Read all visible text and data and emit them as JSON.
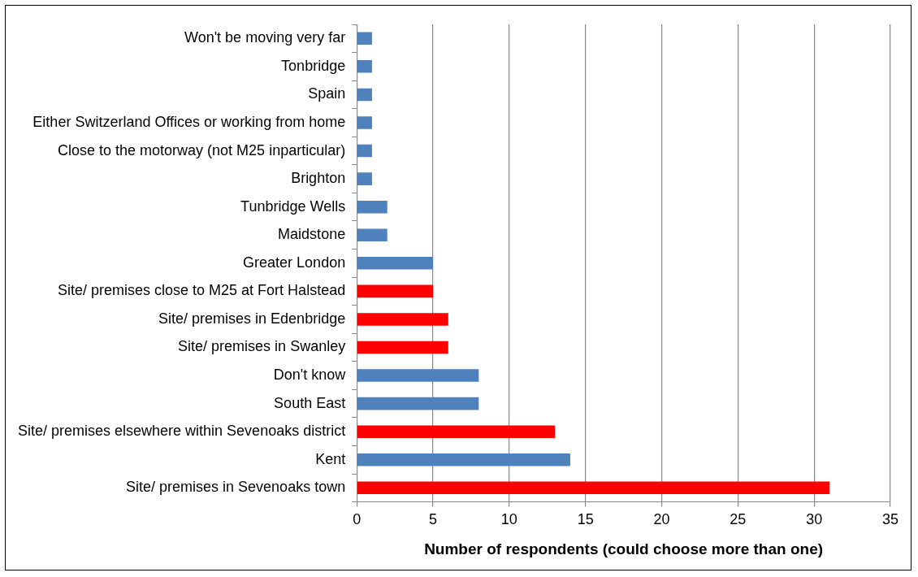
{
  "chart_data": {
    "type": "bar",
    "orientation": "horizontal",
    "xlabel": "Number of respondents (could choose more than one)",
    "categories": [
      "Won't be moving very far",
      "Tonbridge",
      "Spain",
      "Either Switzerland Offices or working from home",
      "Close to the motorway (not M25 inparticular)",
      "Brighton",
      "Tunbridge Wells",
      "Maidstone",
      "Greater London",
      "Site/ premises close to M25 at Fort Halstead",
      "Site/ premises in Edenbridge",
      "Site/ premises in Swanley",
      "Don't know",
      "South East",
      "Site/ premises elsewhere within Sevenoaks district",
      "Kent",
      "Site/ premises in Sevenoaks town"
    ],
    "values": [
      1,
      1,
      1,
      1,
      1,
      1,
      2,
      2,
      5,
      5,
      6,
      6,
      8,
      8,
      13,
      14,
      31
    ],
    "colors": [
      "#4f81bd",
      "#4f81bd",
      "#4f81bd",
      "#4f81bd",
      "#4f81bd",
      "#4f81bd",
      "#4f81bd",
      "#4f81bd",
      "#4f81bd",
      "#ff0000",
      "#ff0000",
      "#ff0000",
      "#4f81bd",
      "#4f81bd",
      "#ff0000",
      "#4f81bd",
      "#ff0000"
    ],
    "xlim": [
      0,
      35
    ],
    "xticks": [
      0,
      5,
      10,
      15,
      20,
      25,
      30,
      35
    ],
    "grid": "x",
    "legend": false
  }
}
